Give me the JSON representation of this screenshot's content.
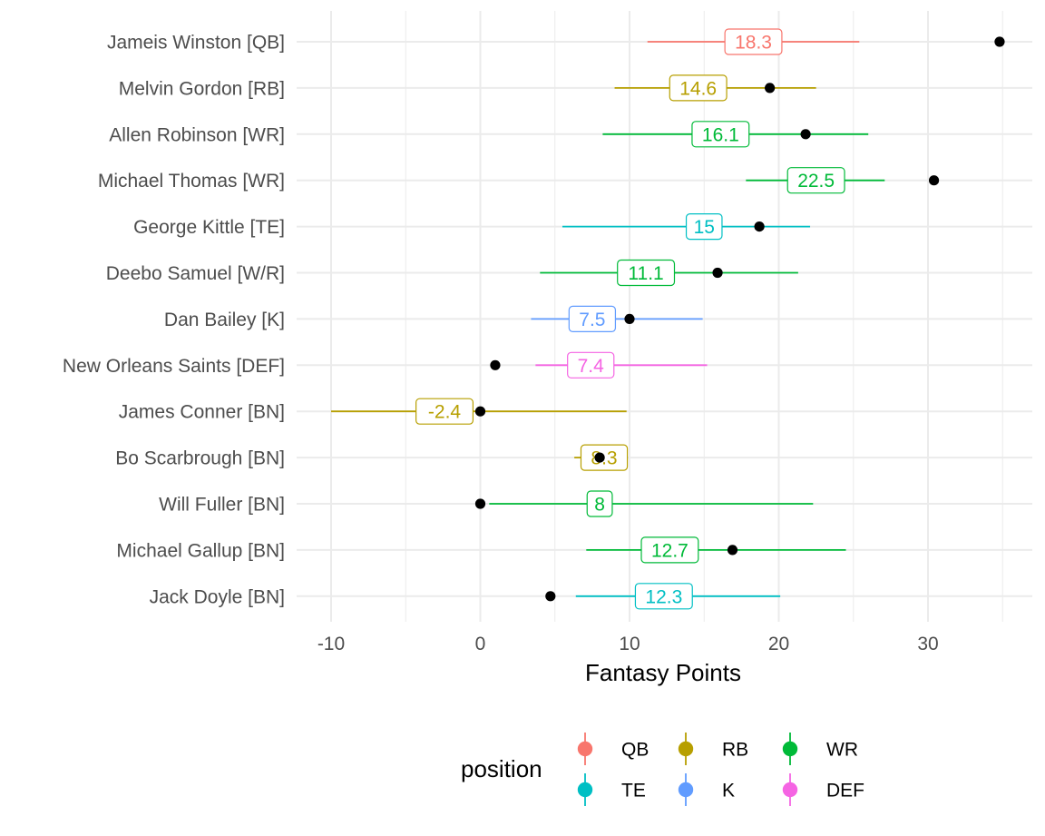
{
  "chart_data": {
    "type": "scatter",
    "xlabel": "Fantasy Points",
    "ylabel": "",
    "xlim": [
      -10.2,
      36.3
    ],
    "x_ticks": [
      -10,
      0,
      10,
      20,
      30
    ],
    "grid": true,
    "legend": {
      "title": "position",
      "placement": "bottom",
      "entries": [
        {
          "label": "QB",
          "color": "#F8766D"
        },
        {
          "label": "RB",
          "color": "#B79F00"
        },
        {
          "label": "WR",
          "color": "#00BA38"
        },
        {
          "label": "TE",
          "color": "#00BFC4"
        },
        {
          "label": "K",
          "color": "#619CFF"
        },
        {
          "label": "DEF",
          "color": "#F564E3"
        }
      ]
    },
    "players": [
      {
        "name": "Jameis Winston [QB]",
        "position": "QB",
        "low": 11.2,
        "high": 25.4,
        "projection": 18.3,
        "actual": 34.8
      },
      {
        "name": "Melvin Gordon [RB]",
        "position": "RB",
        "low": 9.0,
        "high": 22.5,
        "projection": 14.6,
        "actual": 19.4
      },
      {
        "name": "Allen Robinson [WR]",
        "position": "WR",
        "low": 8.2,
        "high": 26.0,
        "projection": 16.1,
        "actual": 21.8
      },
      {
        "name": "Michael Thomas [WR]",
        "position": "WR",
        "low": 17.8,
        "high": 27.1,
        "projection": 22.5,
        "actual": 30.4
      },
      {
        "name": "George Kittle [TE]",
        "position": "TE",
        "low": 5.5,
        "high": 22.1,
        "projection": 15,
        "actual": 18.7
      },
      {
        "name": "Deebo Samuel [W/R]",
        "position": "WR",
        "low": 4.0,
        "high": 21.3,
        "projection": 11.1,
        "actual": 15.9
      },
      {
        "name": "Dan Bailey [K]",
        "position": "K",
        "low": 3.4,
        "high": 14.9,
        "projection": 7.5,
        "actual": 10.0
      },
      {
        "name": "New Orleans Saints [DEF]",
        "position": "DEF",
        "low": 3.7,
        "high": 15.2,
        "projection": 7.4,
        "actual": 1.0
      },
      {
        "name": "James Conner [BN]",
        "position": "RB",
        "low": -10.0,
        "high": 9.8,
        "projection": -2.4,
        "actual": 0.0
      },
      {
        "name": "Bo Scarbrough [BN]",
        "position": "RB",
        "low": 6.3,
        "high": 8.6,
        "projection": 8.3,
        "actual": 8.0
      },
      {
        "name": "Will Fuller [BN]",
        "position": "WR",
        "low": 0.6,
        "high": 22.3,
        "projection": 8,
        "actual": 0.0
      },
      {
        "name": "Michael Gallup [BN]",
        "position": "WR",
        "low": 7.1,
        "high": 24.5,
        "projection": 12.7,
        "actual": 16.9
      },
      {
        "name": "Jack Doyle [BN]",
        "position": "TE",
        "low": 6.4,
        "high": 20.1,
        "projection": 12.3,
        "actual": 4.7
      }
    ]
  }
}
